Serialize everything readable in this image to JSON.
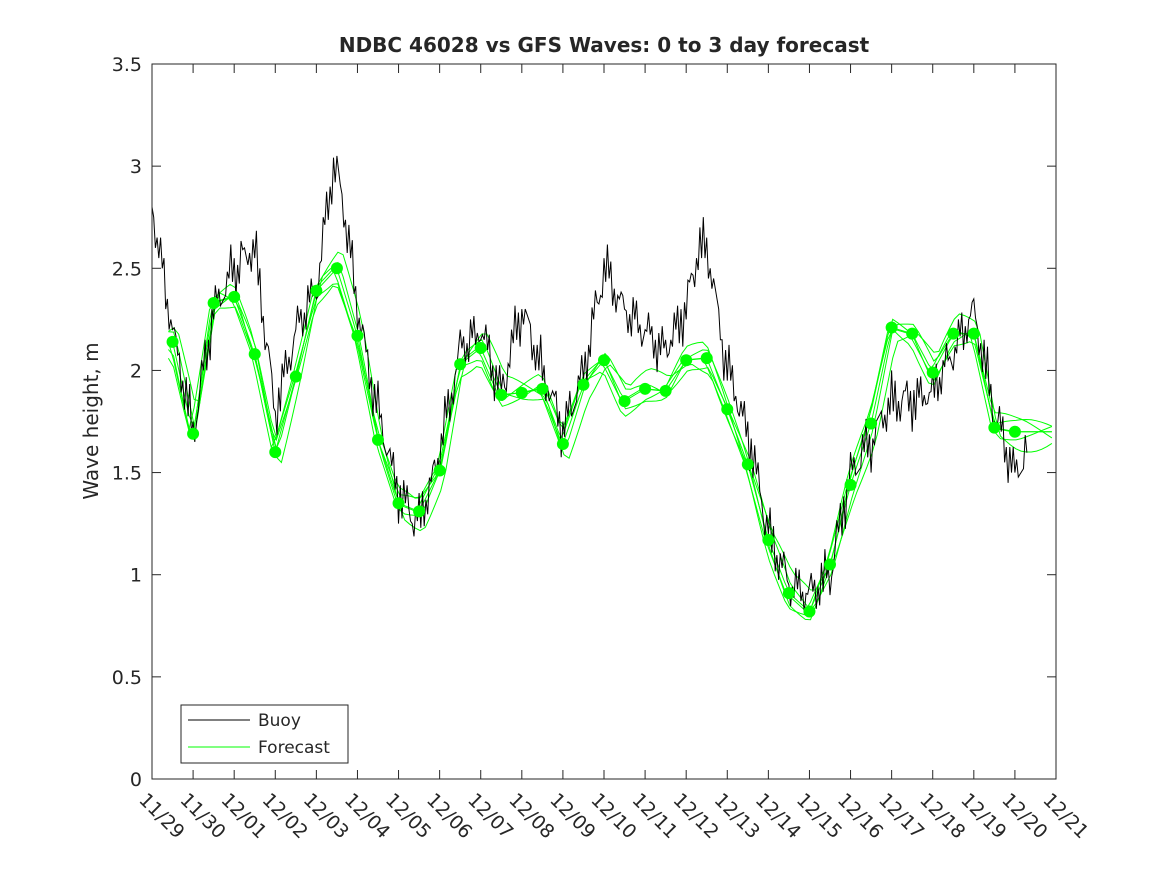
{
  "chart_data": {
    "type": "line",
    "title": "NDBC 46028 vs GFS Waves: 0 to 3 day forecast",
    "xlabel": "",
    "ylabel": "Wave height, m",
    "ylim": [
      0,
      3.5
    ],
    "xlim_days": [
      0,
      22
    ],
    "yticks": [
      "0",
      "0.5",
      "1",
      "1.5",
      "2",
      "2.5",
      "3",
      "3.5"
    ],
    "xtick_labels": [
      "11/29",
      "11/30",
      "12/01",
      "12/02",
      "12/03",
      "12/04",
      "12/05",
      "12/06",
      "12/07",
      "12/08",
      "12/09",
      "12/10",
      "12/11",
      "12/12",
      "12/13",
      "12/14",
      "12/15",
      "12/16",
      "12/17",
      "12/18",
      "12/19",
      "12/20",
      "12/21"
    ],
    "legend": {
      "placement": "bottom-left",
      "entries": [
        "Buoy",
        "Forecast"
      ]
    },
    "colors": {
      "buoy": "#000000",
      "forecast": "#00ff00"
    },
    "series": [
      {
        "name": "Buoy",
        "x_days": [
          0,
          0.5,
          1,
          1.5,
          2,
          2.5,
          3,
          3.5,
          4,
          4.4,
          4.6,
          5,
          5.5,
          6,
          6.5,
          7,
          7.5,
          8,
          8.5,
          9,
          9.5,
          10,
          10.5,
          11,
          11.5,
          12,
          12.5,
          13,
          13.3,
          13.5,
          13.75,
          14,
          14.5,
          15,
          15.5,
          16,
          16.5,
          17,
          17.5,
          18,
          18.5,
          19,
          19.5,
          20,
          20.5,
          21,
          21.3
        ],
        "values": [
          2.8,
          2.2,
          1.7,
          2.3,
          2.5,
          2.6,
          1.8,
          2.2,
          2.4,
          3.0,
          2.9,
          2.3,
          1.8,
          1.4,
          1.25,
          1.6,
          2.1,
          2.2,
          1.9,
          2.3,
          2.0,
          1.7,
          2.0,
          2.5,
          2.3,
          2.2,
          2.1,
          2.3,
          2.6,
          2.6,
          2.3,
          2.0,
          1.7,
          1.2,
          0.95,
          0.9,
          1.0,
          1.5,
          1.65,
          1.85,
          1.85,
          1.9,
          2.1,
          2.3,
          1.8,
          1.5,
          1.6
        ]
      },
      {
        "name": "Forecast",
        "x_days": [
          0.5,
          1,
          1.5,
          2,
          2.5,
          3,
          3.5,
          4,
          4.5,
          5,
          5.5,
          6,
          6.5,
          7,
          7.5,
          8,
          8.5,
          9,
          9.5,
          10,
          10.5,
          11,
          11.5,
          12,
          12.5,
          13,
          13.5,
          14,
          14.5,
          15,
          15.5,
          16,
          16.5,
          17,
          17.5,
          18,
          18.5,
          19,
          19.5,
          20,
          20.5,
          21
        ],
        "values": [
          2.14,
          1.69,
          2.33,
          2.36,
          2.08,
          1.6,
          1.97,
          2.39,
          2.5,
          2.17,
          1.66,
          1.35,
          1.31,
          1.51,
          2.03,
          2.11,
          1.88,
          1.89,
          1.91,
          1.64,
          1.93,
          2.05,
          1.85,
          1.91,
          1.9,
          2.05,
          2.06,
          1.81,
          1.54,
          1.17,
          0.91,
          0.82,
          1.05,
          1.44,
          1.74,
          2.21,
          2.18,
          1.99,
          2.18,
          2.18,
          1.72,
          1.7
        ]
      }
    ]
  }
}
